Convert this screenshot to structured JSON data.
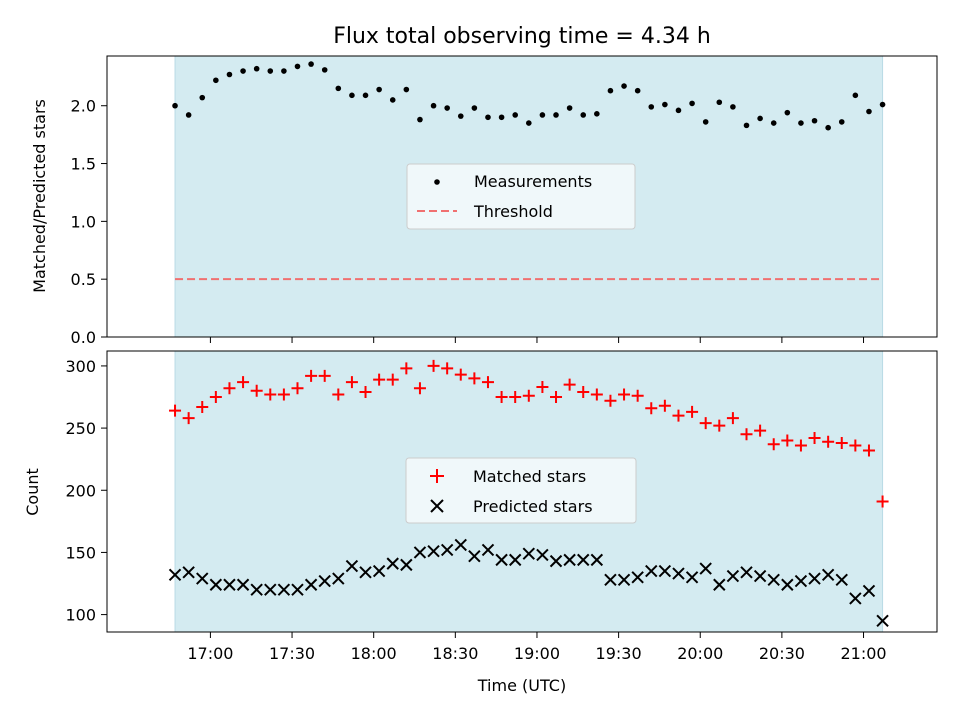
{
  "chart_data": [
    {
      "type": "scatter",
      "title": "Flux total observing time = 4.34 h",
      "xlabel": "",
      "ylabel": "Matched/Predicted stars",
      "ylim": [
        0.0,
        2.43
      ],
      "x_ticks": [
        "17:00",
        "17:30",
        "18:00",
        "18:30",
        "19:00",
        "19:30",
        "20:00",
        "20:30",
        "21:00"
      ],
      "y_ticks": [
        "0.0",
        "0.5",
        "1.0",
        "1.5",
        "2.0"
      ],
      "observing_window": [
        "16:47",
        "21:07"
      ],
      "legend": {
        "placement": "center",
        "entries": [
          "Measurements",
          "Threshold"
        ]
      },
      "threshold": 0.5,
      "colors": {
        "measurements": "#000000",
        "threshold": "#f07070",
        "window": "#d4ebf1"
      },
      "series": [
        {
          "name": "Measurements",
          "x": [
            "16:47",
            "16:52",
            "16:57",
            "17:02",
            "17:07",
            "17:12",
            "17:17",
            "17:22",
            "17:27",
            "17:32",
            "17:37",
            "17:42",
            "17:47",
            "17:52",
            "17:57",
            "18:02",
            "18:07",
            "18:12",
            "18:17",
            "18:22",
            "18:27",
            "18:32",
            "18:37",
            "18:42",
            "18:47",
            "18:52",
            "18:57",
            "19:02",
            "19:07",
            "19:12",
            "19:17",
            "19:22",
            "19:27",
            "19:32",
            "19:37",
            "19:42",
            "19:47",
            "19:52",
            "19:57",
            "20:02",
            "20:07",
            "20:12",
            "20:17",
            "20:22",
            "20:27",
            "20:32",
            "20:37",
            "20:42",
            "20:47",
            "20:52",
            "20:57",
            "21:02",
            "21:07"
          ],
          "values": [
            2.0,
            1.92,
            2.07,
            2.22,
            2.27,
            2.3,
            2.32,
            2.3,
            2.3,
            2.34,
            2.36,
            2.31,
            2.15,
            2.09,
            2.09,
            2.14,
            2.05,
            2.14,
            1.88,
            2.0,
            1.98,
            1.91,
            1.98,
            1.9,
            1.9,
            1.92,
            1.85,
            1.92,
            1.92,
            1.98,
            1.92,
            1.93,
            2.13,
            2.17,
            2.13,
            1.99,
            2.01,
            1.96,
            2.02,
            1.86,
            2.03,
            1.99,
            1.83,
            1.89,
            1.85,
            1.94,
            1.85,
            1.87,
            1.81,
            1.86,
            2.09,
            1.95,
            2.01
          ]
        }
      ]
    },
    {
      "type": "scatter",
      "title": "",
      "xlabel": "Time (UTC)",
      "ylabel": "Count",
      "ylim": [
        86,
        312
      ],
      "x_ticks": [
        "17:00",
        "17:30",
        "18:00",
        "18:30",
        "19:00",
        "19:30",
        "20:00",
        "20:30",
        "21:00"
      ],
      "y_ticks": [
        "100",
        "150",
        "200",
        "250",
        "300"
      ],
      "observing_window": [
        "16:47",
        "21:07"
      ],
      "legend": {
        "placement": "center",
        "entries": [
          "Matched stars",
          "Predicted stars"
        ]
      },
      "colors": {
        "matched": "#ff0000",
        "predicted": "#000000",
        "window": "#d4ebf1"
      },
      "series": [
        {
          "name": "Matched stars",
          "x": [
            "16:47",
            "16:52",
            "16:57",
            "17:02",
            "17:07",
            "17:12",
            "17:17",
            "17:22",
            "17:27",
            "17:32",
            "17:37",
            "17:42",
            "17:47",
            "17:52",
            "17:57",
            "18:02",
            "18:07",
            "18:12",
            "18:17",
            "18:22",
            "18:27",
            "18:32",
            "18:37",
            "18:42",
            "18:47",
            "18:52",
            "18:57",
            "19:02",
            "19:07",
            "19:12",
            "19:17",
            "19:22",
            "19:27",
            "19:32",
            "19:37",
            "19:42",
            "19:47",
            "19:52",
            "19:57",
            "20:02",
            "20:07",
            "20:12",
            "20:17",
            "20:22",
            "20:27",
            "20:32",
            "20:37",
            "20:42",
            "20:47",
            "20:52",
            "20:57",
            "21:02",
            "21:07"
          ],
          "values": [
            264,
            258,
            267,
            275,
            282,
            287,
            280,
            277,
            277,
            282,
            292,
            292,
            277,
            287,
            279,
            289,
            289,
            298,
            282,
            300,
            298,
            293,
            290,
            287,
            275,
            275,
            276,
            283,
            275,
            285,
            279,
            277,
            272,
            277,
            276,
            266,
            268,
            260,
            263,
            254,
            252,
            258,
            245,
            248,
            237,
            240,
            236,
            242,
            239,
            238,
            236,
            232,
            191
          ]
        },
        {
          "name": "Predicted stars",
          "x": [
            "16:47",
            "16:52",
            "16:57",
            "17:02",
            "17:07",
            "17:12",
            "17:17",
            "17:22",
            "17:27",
            "17:32",
            "17:37",
            "17:42",
            "17:47",
            "17:52",
            "17:57",
            "18:02",
            "18:07",
            "18:12",
            "18:17",
            "18:22",
            "18:27",
            "18:32",
            "18:37",
            "18:42",
            "18:47",
            "18:52",
            "18:57",
            "19:02",
            "19:07",
            "19:12",
            "19:17",
            "19:22",
            "19:27",
            "19:32",
            "19:37",
            "19:42",
            "19:47",
            "19:52",
            "19:57",
            "20:02",
            "20:07",
            "20:12",
            "20:17",
            "20:22",
            "20:27",
            "20:32",
            "20:37",
            "20:42",
            "20:47",
            "20:52",
            "20:57",
            "21:02",
            "21:07"
          ],
          "values": [
            132,
            134,
            129,
            124,
            124,
            124,
            120,
            120,
            120,
            120,
            124,
            127,
            129,
            139,
            134,
            135,
            141,
            140,
            150,
            151,
            152,
            156,
            147,
            152,
            144,
            144,
            149,
            148,
            143,
            144,
            144,
            144,
            128,
            128,
            130,
            135,
            135,
            133,
            130,
            137,
            124,
            131,
            134,
            131,
            128,
            124,
            127,
            129,
            132,
            128,
            113,
            119,
            95
          ]
        }
      ]
    }
  ]
}
